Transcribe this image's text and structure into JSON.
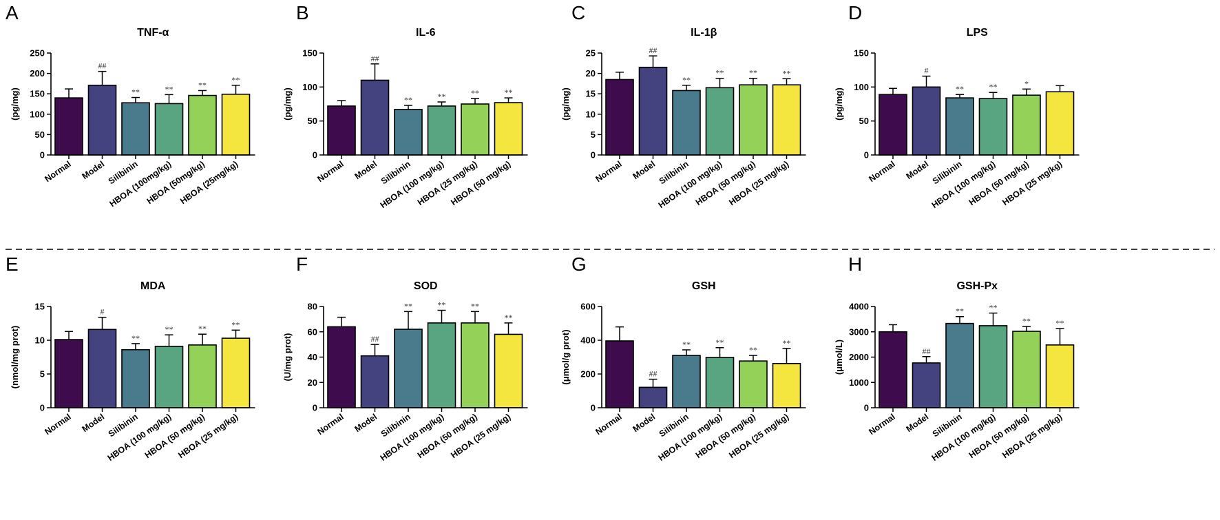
{
  "colors": [
    "#3e0b4d",
    "#45437f",
    "#4a7b8d",
    "#5aa581",
    "#94d159",
    "#f4e53f"
  ],
  "divider": "dashed",
  "chart_data": [
    {
      "panel": "A",
      "type": "bar",
      "title": "TNF-α",
      "ylabel": "(pg/mg)",
      "ylim": [
        0,
        250
      ],
      "yticks": [
        0,
        50,
        100,
        150,
        200,
        250
      ],
      "categories": [
        "Normal",
        "Model",
        "Silibinin",
        "HBOA (100mg/kg)",
        "HBOA (50mg/kg)",
        "HBOA (25mg/kg)"
      ],
      "values": [
        140,
        171,
        128,
        126,
        146,
        149
      ],
      "errors": [
        22,
        34,
        13,
        22,
        12,
        22
      ],
      "significance": [
        "",
        "##",
        "**",
        "**",
        "**",
        "**"
      ]
    },
    {
      "panel": "B",
      "type": "bar",
      "title": "IL-6",
      "ylabel": "(pg/mg)",
      "ylim": [
        0,
        150
      ],
      "yticks": [
        0,
        50,
        100,
        150
      ],
      "categories": [
        "Normal",
        "Model",
        "Silibinin",
        "HBOA (100 mg/kg)",
        "HBOA (25 mg/kg)",
        "HBOA (50 mg/kg)"
      ],
      "values": [
        72,
        110,
        67,
        72,
        75,
        77
      ],
      "errors": [
        8,
        24,
        6,
        6,
        8,
        7
      ],
      "significance": [
        "",
        "##",
        "**",
        "**",
        "**",
        "**"
      ]
    },
    {
      "panel": "C",
      "type": "bar",
      "title": "IL-1β",
      "ylabel": "(pg/mg)",
      "ylim": [
        0,
        25
      ],
      "yticks": [
        0,
        5,
        10,
        15,
        20,
        25
      ],
      "categories": [
        "Normal",
        "Model",
        "Silibinin",
        "HBOA (100 mg/kg)",
        "HBOA (50 mg/kg)",
        "HBOA (25 mg/kg)"
      ],
      "values": [
        18.5,
        21.5,
        15.8,
        16.5,
        17.2,
        17.2
      ],
      "errors": [
        1.8,
        2.8,
        1.3,
        2.3,
        1.6,
        1.5
      ],
      "significance": [
        "",
        "##",
        "**",
        "**",
        "**",
        "**"
      ]
    },
    {
      "panel": "D",
      "type": "bar",
      "title": "LPS",
      "ylabel": "(pg/mg)",
      "ylim": [
        0,
        150
      ],
      "yticks": [
        0,
        50,
        100,
        150
      ],
      "categories": [
        "Normal",
        "Model",
        "Silibinin",
        "HBOA (100 mg/kg)",
        "HBOA (50 mg/kg)",
        "HBOA (25 mg/kg)"
      ],
      "values": [
        89,
        100,
        84,
        83,
        88,
        93
      ],
      "errors": [
        9,
        16,
        5,
        9,
        9,
        9
      ],
      "significance": [
        "",
        "#",
        "**",
        "**",
        "*",
        ""
      ]
    },
    {
      "panel": "E",
      "type": "bar",
      "title": "MDA",
      "ylabel": "(nmol/mg prot)",
      "ylim": [
        0,
        15
      ],
      "yticks": [
        0,
        5,
        10,
        15
      ],
      "categories": [
        "Normal",
        "Model",
        "Silibinin",
        "HBOA (100 mg/kg)",
        "HBOA (50 mg/kg)",
        "HBOA (25 mg/kg)"
      ],
      "values": [
        10.1,
        11.6,
        8.6,
        9.1,
        9.3,
        10.3
      ],
      "errors": [
        1.2,
        1.8,
        0.9,
        1.7,
        1.6,
        1.2
      ],
      "significance": [
        "",
        "#",
        "**",
        "**",
        "**",
        "**"
      ]
    },
    {
      "panel": "F",
      "type": "bar",
      "title": "SOD",
      "ylabel": "(U/mg prot)",
      "ylim": [
        0,
        80
      ],
      "yticks": [
        0,
        20,
        40,
        60,
        80
      ],
      "categories": [
        "Normal",
        "Model",
        "Silibinin",
        "HBOA (100 mg/kg)",
        "HBOA (50 mg/kg)",
        "HBOA (25 mg/kg)"
      ],
      "values": [
        64,
        41,
        62,
        67,
        67,
        58
      ],
      "errors": [
        7.5,
        9,
        14,
        10,
        9,
        9
      ],
      "significance": [
        "",
        "##",
        "**",
        "**",
        "**",
        "**"
      ]
    },
    {
      "panel": "G",
      "type": "bar",
      "title": "GSH",
      "ylabel": "(μmol/g prot)",
      "ylim": [
        0,
        600
      ],
      "yticks": [
        0,
        200,
        400,
        600
      ],
      "categories": [
        "Normal",
        "Model",
        "Silibinin",
        "HBOA (100 mg/kg)",
        "HBOA (50 mg/kg)",
        "HBOA (25 mg/kg)"
      ],
      "values": [
        396,
        121,
        310,
        298,
        277,
        262
      ],
      "errors": [
        83,
        48,
        33,
        58,
        33,
        90
      ],
      "significance": [
        "",
        "##",
        "**",
        "**",
        "**",
        "**"
      ]
    },
    {
      "panel": "H",
      "type": "bar",
      "title": "GSH-Px",
      "ylabel": "(μmol/L)",
      "ylim": [
        0,
        4000
      ],
      "yticks": [
        0,
        1000,
        2000,
        3000,
        4000
      ],
      "categories": [
        "Normal",
        "Model",
        "Silibinin",
        "HBOA (100 mg/kg)",
        "HBOA (50 mg/kg)",
        "HBOA (25 mg/kg)"
      ],
      "values": [
        3000,
        1770,
        3330,
        3240,
        3020,
        2480
      ],
      "errors": [
        280,
        250,
        270,
        500,
        190,
        650
      ],
      "significance": [
        "",
        "##",
        "**",
        "**",
        "**",
        "**"
      ]
    }
  ]
}
